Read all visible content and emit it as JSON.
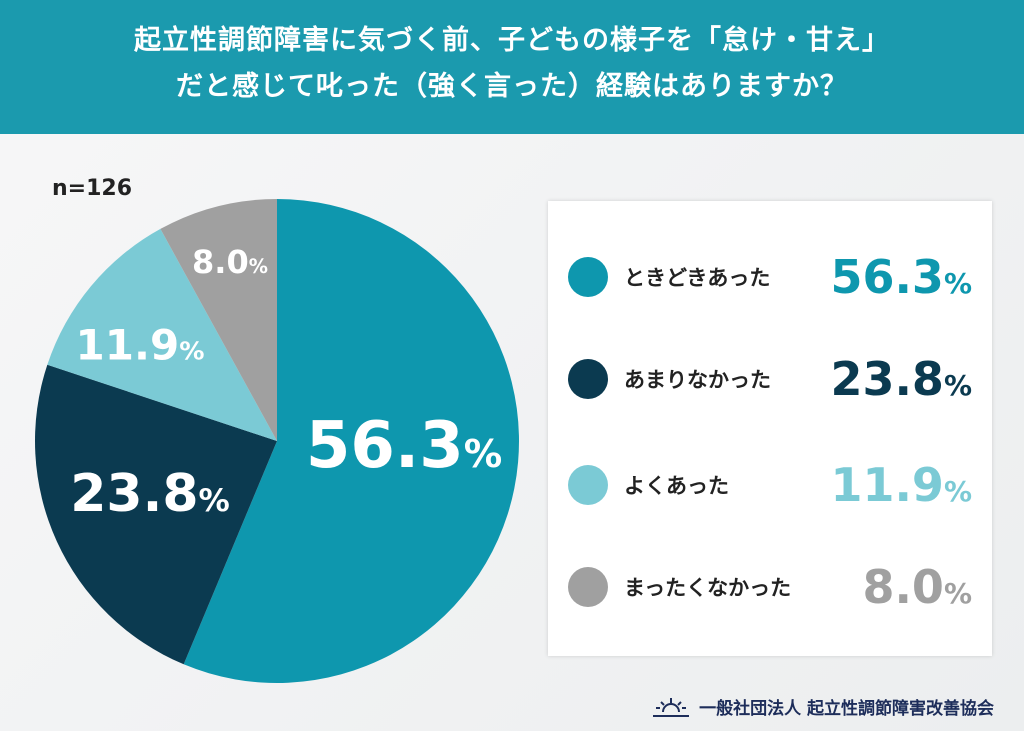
{
  "header": {
    "title_line1": "起立性調節障害に気づく前、子どもの様子を「怠け・甘え」",
    "title_line2": "だと感じて叱った（強く言った）経験はありますか？"
  },
  "chart_data": {
    "type": "pie",
    "note_n": "n=126",
    "unit": "%",
    "slices": [
      {
        "label": "ときどきあった",
        "value": 56.3,
        "display": "56.3",
        "color": "#0e97ae"
      },
      {
        "label": "あまりなかった",
        "value": 23.8,
        "display": "23.8",
        "color": "#0b3a50"
      },
      {
        "label": "よくあった",
        "value": 11.9,
        "display": "11.9",
        "color": "#7bcad5"
      },
      {
        "label": "まったくなかった",
        "value": 8.0,
        "display": "8.0",
        "color": "#a0a0a0"
      }
    ]
  },
  "footer": {
    "org": "一般社団法人 起立性調節障害改善協会",
    "logo_icon": "sunrise-icon"
  }
}
